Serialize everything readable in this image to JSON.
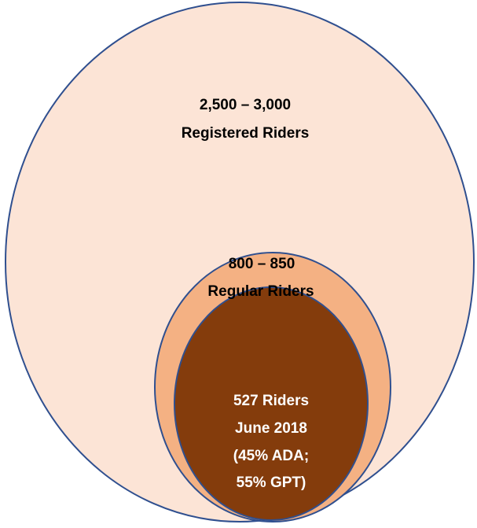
{
  "nodes": [
    {
      "lines": [
        "2,500 – 3,000",
        "Registered Riders"
      ]
    },
    {
      "lines": [
        "800 – 850",
        "Regular Riders"
      ]
    },
    {
      "lines": [
        "527 Riders",
        "June 2018",
        "(45% ADA;",
        "55% GPT)"
      ]
    }
  ]
}
